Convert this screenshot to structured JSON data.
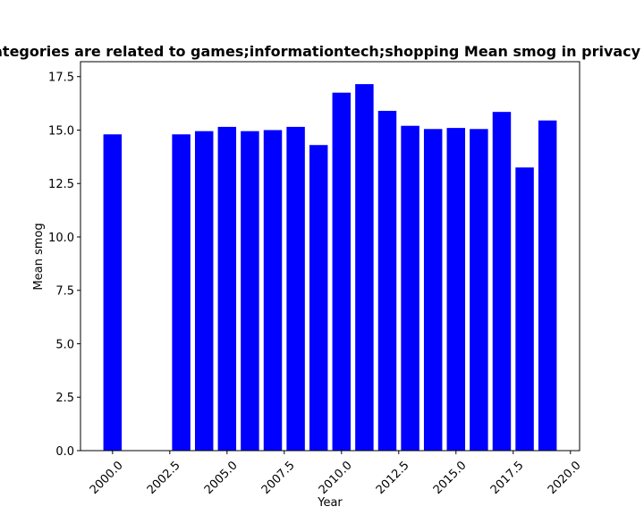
{
  "chart_data": {
    "type": "bar",
    "title": "What categories are related to games;informationtech;shopping Mean smog in privacy policies",
    "xlabel": "Year",
    "ylabel": "Mean smog",
    "x": [
      2000,
      2003,
      2004,
      2005,
      2006,
      2007,
      2008,
      2009,
      2010,
      2011,
      2012,
      2013,
      2014,
      2015,
      2016,
      2017,
      2018,
      2019
    ],
    "values": [
      14.8,
      14.8,
      14.95,
      15.15,
      14.95,
      15.0,
      15.15,
      14.3,
      16.75,
      17.15,
      15.9,
      15.2,
      15.05,
      15.1,
      15.05,
      15.85,
      13.25,
      15.45
    ],
    "bar_width": 0.8,
    "xlim": [
      1998.6,
      2020.4
    ],
    "ylim": [
      0,
      18.2
    ],
    "xticks": [
      2000.0,
      2002.5,
      2005.0,
      2007.5,
      2010.0,
      2012.5,
      2015.0,
      2017.5,
      2020.0
    ],
    "xtick_labels": [
      "2000.0",
      "2002.5",
      "2005.0",
      "2007.5",
      "2010.0",
      "2012.5",
      "2015.0",
      "2017.5",
      "2020.0"
    ],
    "yticks": [
      0.0,
      2.5,
      5.0,
      7.5,
      10.0,
      12.5,
      15.0,
      17.5
    ],
    "ytick_labels": [
      "0.0",
      "2.5",
      "5.0",
      "7.5",
      "10.0",
      "12.5",
      "15.0",
      "17.5"
    ],
    "bar_color": "#0000ff",
    "grid": false,
    "legend": "none"
  }
}
